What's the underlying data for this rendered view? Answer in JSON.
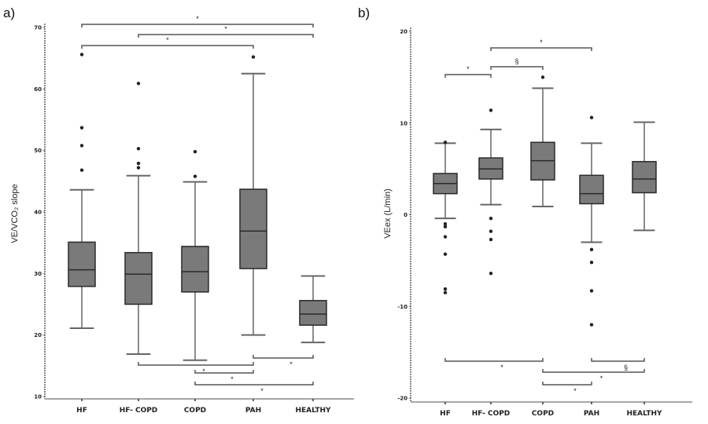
{
  "chart_data": [
    {
      "type": "box",
      "panel_label": "a)",
      "ylabel": "VE/VCO₂ slope",
      "ylim": [
        10,
        70
      ],
      "yticks": [
        10,
        20,
        30,
        40,
        50,
        60,
        70
      ],
      "categories": [
        "HF",
        "HF- COPD",
        "COPD",
        "PAH",
        "HEALTHY"
      ],
      "boxes": [
        {
          "min": 21.1,
          "q1": 27.9,
          "median": 30.6,
          "q3": 35.1,
          "max": 43.6,
          "outliers": [
            46.8,
            50.8,
            53.7,
            65.6
          ]
        },
        {
          "min": 16.9,
          "q1": 25.0,
          "median": 29.9,
          "q3": 33.4,
          "max": 45.9,
          "outliers": [
            47.2,
            47.9,
            50.3,
            60.9
          ]
        },
        {
          "min": 15.9,
          "q1": 27.0,
          "median": 30.3,
          "q3": 34.4,
          "max": 44.9,
          "outliers": [
            45.8,
            49.8
          ]
        },
        {
          "min": 20.0,
          "q1": 30.8,
          "median": 36.9,
          "q3": 43.7,
          "max": 62.5,
          "outliers": [
            65.2
          ]
        },
        {
          "min": 18.8,
          "q1": 21.6,
          "median": 23.4,
          "q3": 25.6,
          "max": 29.6,
          "outliers": []
        }
      ],
      "comparisons": [
        {
          "from": "HF",
          "to": "HEALTHY",
          "label": "*",
          "position": "top"
        },
        {
          "from": "HF- COPD",
          "to": "HEALTHY",
          "label": "*",
          "position": "top"
        },
        {
          "from": "HF",
          "to": "PAH",
          "label": "*",
          "position": "top"
        },
        {
          "from": "PAH",
          "to": "HEALTHY",
          "label": "*",
          "position": "bottom"
        },
        {
          "from": "HF- COPD",
          "to": "PAH",
          "label": "*",
          "position": "bottom"
        },
        {
          "from": "COPD",
          "to": "PAH",
          "label": "*",
          "position": "bottom"
        },
        {
          "from": "COPD",
          "to": "HEALTHY",
          "label": "*",
          "position": "bottom"
        }
      ],
      "colors": {
        "box_fill": "#7a7a7a",
        "box_stroke": "#2a2a2a",
        "whisker": "#666666"
      }
    },
    {
      "type": "box",
      "panel_label": "b)",
      "ylabel": "VEex (L/min)",
      "ylim": [
        -20,
        20
      ],
      "yticks": [
        -20,
        -10,
        0,
        10,
        20
      ],
      "categories": [
        "HF",
        "HF- COPD",
        "COPD",
        "PAH",
        "HEALTHY"
      ],
      "boxes": [
        {
          "min": -0.4,
          "q1": 2.3,
          "median": 3.4,
          "q3": 4.5,
          "max": 7.8,
          "outliers": [
            7.9,
            -1.0,
            -1.3,
            -2.4,
            -4.3,
            -8.1,
            -8.5
          ]
        },
        {
          "min": 1.1,
          "q1": 3.9,
          "median": 5.0,
          "q3": 6.2,
          "max": 9.3,
          "outliers": [
            11.4,
            -0.4,
            -1.8,
            -2.7,
            -6.4
          ]
        },
        {
          "min": 0.9,
          "q1": 3.8,
          "median": 5.9,
          "q3": 7.9,
          "max": 13.8,
          "outliers": [
            15.0
          ]
        },
        {
          "min": -3.0,
          "q1": 1.2,
          "median": 2.3,
          "q3": 4.3,
          "max": 7.8,
          "outliers": [
            10.6,
            -3.8,
            -5.2,
            -8.3,
            -12.0
          ]
        },
        {
          "min": -1.7,
          "q1": 2.4,
          "median": 3.9,
          "q3": 5.8,
          "max": 10.1,
          "outliers": []
        }
      ],
      "comparisons": [
        {
          "from": "HF",
          "to": "HF- COPD",
          "label": "*",
          "position": "top"
        },
        {
          "from": "HF- COPD",
          "to": "COPD",
          "label": "§",
          "position": "top"
        },
        {
          "from": "HF- COPD",
          "to": "PAH",
          "label": "*",
          "position": "top"
        },
        {
          "from": "HF",
          "to": "COPD",
          "label": "*",
          "position": "bottom"
        },
        {
          "from": "PAH",
          "to": "HEALTHY",
          "label": "§",
          "position": "bottom"
        },
        {
          "from": "COPD",
          "to": "HEALTHY",
          "label": "*",
          "position": "bottom"
        },
        {
          "from": "COPD",
          "to": "PAH",
          "label": "*",
          "position": "bottom"
        }
      ],
      "colors": {
        "box_fill": "#7a7a7a",
        "box_stroke": "#2a2a2a",
        "whisker": "#666666"
      }
    }
  ]
}
